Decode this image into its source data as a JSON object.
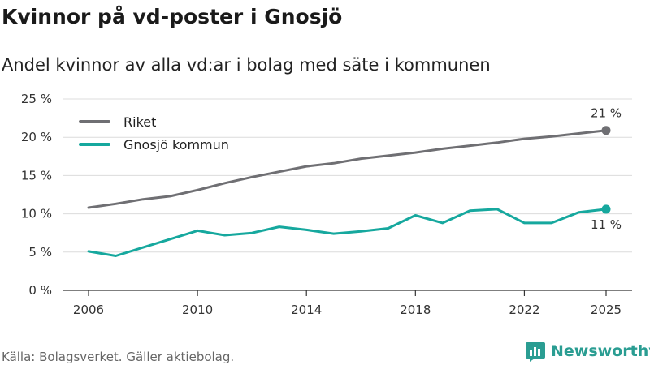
{
  "title": "Kvinnor på vd-poster i Gnosjö",
  "subtitle": "Andel kvinnor av alla vd:ar i bolag med säte i kommunen",
  "source": "Källa: Bolagsverket. Gäller aktiebolag.",
  "brand": {
    "name": "Newsworthy",
    "color": "#2a9d92",
    "icon": "newsworthy-logo-icon"
  },
  "chart_data": {
    "type": "line",
    "title": "Kvinnor på vd-poster i Gnosjö",
    "subtitle": "Andel kvinnor av alla vd:ar i bolag med säte i kommunen",
    "xlabel": "",
    "ylabel": "",
    "x": [
      2006,
      2007,
      2008,
      2009,
      2010,
      2011,
      2012,
      2013,
      2014,
      2015,
      2016,
      2017,
      2018,
      2019,
      2020,
      2021,
      2022,
      2023,
      2024,
      2025
    ],
    "xlim": [
      2006,
      2025
    ],
    "ylim": [
      0,
      25
    ],
    "x_ticks": [
      "2006",
      "2010",
      "2014",
      "2018",
      "2022",
      "2025"
    ],
    "y_ticks": [
      "0 %",
      "5 %",
      "10 %",
      "15 %",
      "20 %",
      "25 %"
    ],
    "grid": "horizontal",
    "legend": "top-left",
    "series": [
      {
        "name": "Riket",
        "color": "#6f6f73",
        "values": [
          10.8,
          11.3,
          11.9,
          12.3,
          13.1,
          14.0,
          14.8,
          15.5,
          16.2,
          16.6,
          17.2,
          17.6,
          18.0,
          18.5,
          18.9,
          19.3,
          19.8,
          20.1,
          20.5,
          20.9
        ],
        "end_label": "21 %"
      },
      {
        "name": "Gnosjö kommun",
        "color": "#16a89e",
        "values": [
          5.1,
          4.5,
          5.6,
          6.7,
          7.8,
          7.2,
          7.5,
          8.3,
          7.9,
          7.4,
          7.7,
          8.1,
          9.8,
          8.8,
          10.4,
          10.6,
          8.8,
          8.8,
          10.2,
          10.6
        ],
        "end_label": "11 %"
      }
    ]
  }
}
